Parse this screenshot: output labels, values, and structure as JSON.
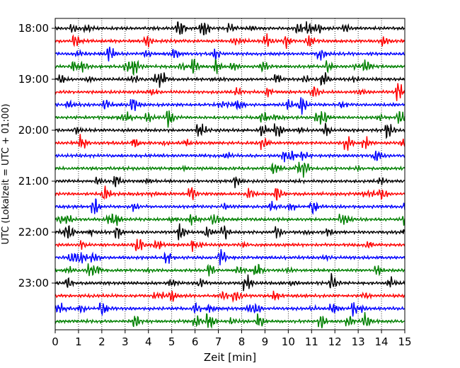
{
  "chart_data": {
    "type": "line",
    "title": "",
    "xlabel": "Zeit  [min]",
    "ylabel": "UTC (Lokalzeit = UTC + 01:00)",
    "xlim": [
      0,
      15
    ],
    "x_ticks": [
      0,
      1,
      2,
      3,
      4,
      5,
      6,
      7,
      8,
      9,
      10,
      11,
      12,
      13,
      14,
      15
    ],
    "x_tick_labels": [
      "0",
      "1",
      "2",
      "3",
      "4",
      "5",
      "6",
      "7",
      "8",
      "9",
      "10",
      "11",
      "12",
      "13",
      "14",
      "15"
    ],
    "y_tick_labels": [
      "18:00",
      "19:00",
      "20:00",
      "21:00",
      "22:00",
      "23:00"
    ],
    "trace_minutes_per_line": 15,
    "trace_start": "18:00",
    "trace_end": "23:45",
    "trace_count": 24,
    "trace_colors_cycle": [
      "#000000",
      "#ff0000",
      "#0000ff",
      "#008000"
    ],
    "grid": "vertical dotted"
  }
}
